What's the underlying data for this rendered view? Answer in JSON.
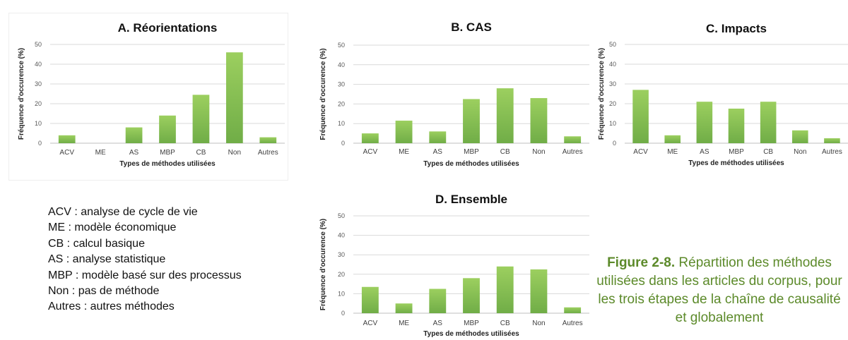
{
  "colors": {
    "bar": "#70ad47",
    "bar_light": "#9ccf5f",
    "grid": "#d9d9d9",
    "axis_text": "#595959",
    "caption": "#5c8a2a"
  },
  "chart_data": [
    {
      "type": "bar",
      "title": "A. Réorientations",
      "xlabel": "Types de méthodes utilisées",
      "ylabel": "Fréquence d'occurence (%)",
      "ylim": [
        0,
        50
      ],
      "yticks": [
        "0",
        "10",
        "20",
        "30",
        "40",
        "50"
      ],
      "grid": true,
      "categories": [
        "ACV",
        "ME",
        "AS",
        "MBP",
        "CB",
        "Non",
        "Autres"
      ],
      "values": [
        4,
        0,
        8,
        14,
        24.5,
        46,
        3
      ]
    },
    {
      "type": "bar",
      "title": "B. CAS",
      "xlabel": "Types de méthodes utilisées",
      "ylabel": "Fréquence d'occurence (%)",
      "ylim": [
        0,
        50
      ],
      "yticks": [
        "0",
        "10",
        "20",
        "30",
        "40",
        "50"
      ],
      "grid": true,
      "categories": [
        "ACV",
        "ME",
        "AS",
        "MBP",
        "CB",
        "Non",
        "Autres"
      ],
      "values": [
        5,
        11.5,
        6,
        22.5,
        28,
        23,
        3.5
      ]
    },
    {
      "type": "bar",
      "title": "C. Impacts",
      "xlabel": "Types de méthodes utilisées",
      "ylabel": "Fréquence d'occurence (%)",
      "ylim": [
        0,
        50
      ],
      "yticks": [
        "0",
        "10",
        "20",
        "30",
        "40",
        "50"
      ],
      "grid": true,
      "categories": [
        "ACV",
        "ME",
        "AS",
        "MBP",
        "CB",
        "Non",
        "Autres"
      ],
      "values": [
        27,
        4,
        21,
        17.5,
        21,
        6.5,
        2.5
      ]
    },
    {
      "type": "bar",
      "title": "D. Ensemble",
      "xlabel": "Types de méthodes utilisées",
      "ylabel": "Fréquence d'occurence (%)",
      "ylim": [
        0,
        50
      ],
      "yticks": [
        "0",
        "10",
        "20",
        "30",
        "40",
        "50"
      ],
      "grid": true,
      "categories": [
        "ACV",
        "ME",
        "AS",
        "MBP",
        "CB",
        "Non",
        "Autres"
      ],
      "values": [
        13.5,
        5,
        12.5,
        18,
        24,
        22.5,
        3
      ]
    }
  ],
  "legend": [
    "ACV : analyse de cycle de vie",
    "ME : modèle économique",
    "CB : calcul basique",
    "AS : analyse statistique",
    "MBP : modèle basé sur des processus",
    "Non : pas de méthode",
    "Autres : autres méthodes"
  ],
  "caption": {
    "label": "Figure 2-8.",
    "text": " Répartition des méthodes utilisées dans les articles du corpus, pour les trois étapes de la chaîne de causalité et globalement"
  }
}
